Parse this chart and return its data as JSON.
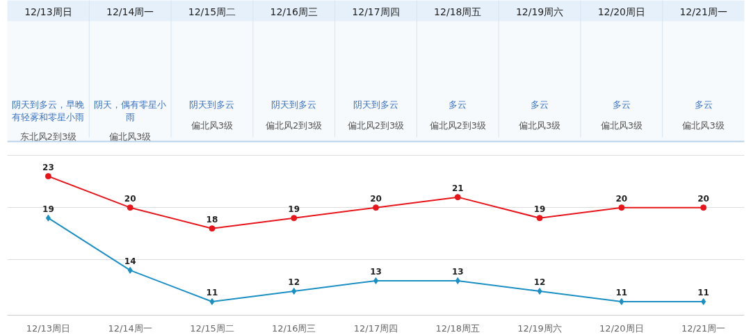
{
  "chart_data": [
    {
      "type": "other",
      "categories": [
        "12/13周日",
        "12/14周一",
        "12/15周二",
        "12/16周三",
        "12/17周四",
        "12/18周五",
        "12/19周六",
        "12/20周日",
        "12/21周一"
      ],
      "annotations": [
        "阴天到多云，早晚有轻雾和零星小雨",
        "阴天，偶有零星小雨",
        "阴天到多云",
        "阴天到多云",
        "阴天到多云",
        "多云",
        "多云",
        "多云",
        "多云",
        "东北风2到3级",
        "偏北风3级",
        "偏北风3级",
        "偏北风2到3级",
        "偏北风2到3级",
        "偏北风2到3级",
        "偏北风3级",
        "偏北风3级",
        "偏北风3级"
      ]
    },
    {
      "type": "line",
      "categories": [
        "12/13周日",
        "12/14周一",
        "12/15周二",
        "12/16周三",
        "12/17周四",
        "12/18周五",
        "12/19周六",
        "12/20周日",
        "12/21周一"
      ],
      "series": [
        {
          "color": "#e8141a",
          "marker": "circle",
          "values": [
            23,
            20,
            18,
            19,
            20,
            21,
            19,
            20,
            20
          ]
        },
        {
          "color": "#1a8fc4",
          "marker": "diamond",
          "values": [
            19,
            14,
            11,
            12,
            13,
            13,
            12,
            11,
            11
          ]
        }
      ],
      "ylim": [
        9.7,
        25.2
      ],
      "yticks": [
        15,
        20,
        25
      ],
      "grid": "y",
      "tick_labels": "x",
      "data_labels": true
    }
  ]
}
